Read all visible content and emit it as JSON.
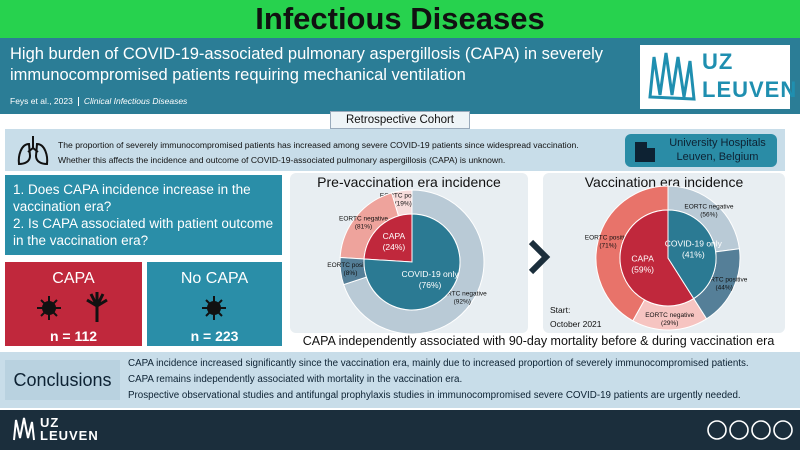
{
  "header": {
    "journal": "Infectious Diseases",
    "title": "High burden of COVID-19-associated pulmonary aspergillosis (CAPA) in severely immunocompromised patients requiring mechanical ventilation",
    "citation": "Feys et al., 2023",
    "source": "Clinical Infectious Diseases",
    "logo": [
      "UZ",
      "LEUVEN"
    ]
  },
  "cohort": "Retrospective Cohort",
  "background": {
    "lines": [
      "The proportion of severely immunocompromised patients has increased among severe COVID-19 patients since widespread vaccination.",
      "Whether this affects the incidence and outcome of COVID-19-associated pulmonary aspergillosis (CAPA) is unknown."
    ],
    "location": "University Hospitals Leuven, Belgium"
  },
  "questions": [
    "1. Does CAPA incidence increase in the vaccination era?",
    "2. Is CAPA associated with patient outcome in the vaccination era?"
  ],
  "groups": [
    {
      "label": "CAPA",
      "n": "n = 112"
    },
    {
      "label": "No CAPA",
      "n": "n = 223"
    }
  ],
  "charts": [
    {
      "title": "Pre-vaccination era incidence",
      "segments": [
        {
          "name": "CAPA",
          "value": 24,
          "value_label": "(24%)",
          "color": "#c0283c",
          "subgroups": [
            {
              "name": "EORTC positive",
              "value": 19,
              "value_label": "(19%)",
              "color": "#f7dcdb"
            },
            {
              "name": "EORTC negative",
              "value": 81,
              "value_label": "(81%)",
              "color": "#eea39c"
            }
          ]
        },
        {
          "name": "COVID-19 only",
          "value": 76,
          "value_label": "(76%)",
          "color": "#2b7a93",
          "subgroups": [
            {
              "name": "EORTC negative",
              "value": 92,
              "value_label": "(92%)",
              "color": "#b9cad6"
            },
            {
              "name": "EORTC positive",
              "value": 8,
              "value_label": "(8%)",
              "color": "#557f98"
            }
          ]
        }
      ]
    },
    {
      "title": "Vaccination era incidence",
      "note": [
        "Start:",
        "October 2021"
      ],
      "segments": [
        {
          "name": "CAPA",
          "value": 59,
          "value_label": "(59%)",
          "color": "#c0283c",
          "subgroups": [
            {
              "name": "EORTC positive",
              "value": 71,
              "value_label": "(71%)",
              "color": "#e8736a"
            },
            {
              "name": "EORTC negative",
              "value": 29,
              "value_label": "(29%)",
              "color": "#f6c4c1"
            }
          ]
        },
        {
          "name": "COVID-19 only",
          "value": 41,
          "value_label": "(41%)",
          "color": "#2b7a93",
          "subgroups": [
            {
              "name": "EORTC negative",
              "value": 56,
              "value_label": "(56%)",
              "color": "#b9cad6"
            },
            {
              "name": "EORTC positive",
              "value": 44,
              "value_label": "(44%)",
              "color": "#557f98"
            }
          ]
        }
      ]
    }
  ],
  "caption": "CAPA independently associated with 90-day mortality before & during vaccination era",
  "conclusions": {
    "title": "Conclusions",
    "lines": [
      "CAPA incidence increased significantly since the vaccination era, mainly due to increased proportion of severely immunocompromised patients.",
      "CAPA remains independently associated with mortality in the vaccination era.",
      "Prospective observational studies and antifungal prophylaxis studies in immunocompromised severe COVID-19 patients are urgently needed."
    ]
  },
  "footer": {
    "logo": [
      "UZ",
      "LEUVEN"
    ]
  }
}
